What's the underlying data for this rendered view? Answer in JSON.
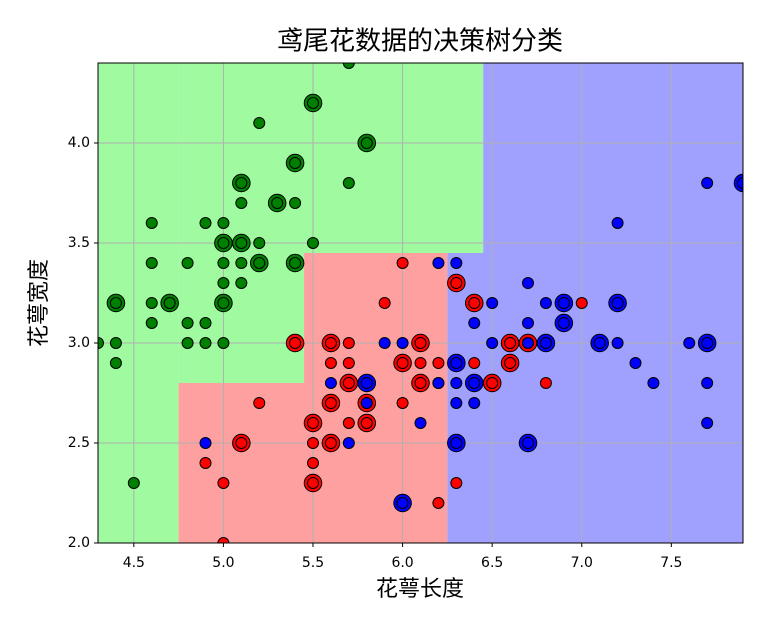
{
  "chart_data": {
    "type": "scatter",
    "title": "鸢尾花数据的决策树分类",
    "xlabel": "花萼长度",
    "ylabel": "花萼宽度",
    "xlim": [
      4.3,
      7.9
    ],
    "ylim": [
      2.0,
      4.4
    ],
    "xticks": [
      {
        "value": 4.5,
        "label": "4.5"
      },
      {
        "value": 5,
        "label": "5.0"
      },
      {
        "value": 5.5,
        "label": "5.5"
      },
      {
        "value": 6,
        "label": "6.0"
      },
      {
        "value": 6.5,
        "label": "6.5"
      },
      {
        "value": 7,
        "label": "7.0"
      },
      {
        "value": 7.5,
        "label": "7.5"
      }
    ],
    "yticks": [
      {
        "value": 2,
        "label": "2.0"
      },
      {
        "value": 2.5,
        "label": "2.5"
      },
      {
        "value": 3,
        "label": "3.0"
      },
      {
        "value": 3.5,
        "label": "3.5"
      },
      {
        "value": 4,
        "label": "4.0"
      }
    ],
    "grid": true,
    "regions": [
      {
        "x": [
          4.3,
          4.75
        ],
        "y": [
          2.0,
          4.4
        ],
        "color": "#a0faa0"
      },
      {
        "x": [
          4.75,
          5.45
        ],
        "y": [
          2.8,
          4.4
        ],
        "color": "#a0faa0"
      },
      {
        "x": [
          5.45,
          6.45
        ],
        "y": [
          3.45,
          4.4
        ],
        "color": "#a0faa0"
      },
      {
        "x": [
          4.75,
          6.25
        ],
        "y": [
          2.0,
          2.8
        ],
        "color": "#ffa0a0"
      },
      {
        "x": [
          5.45,
          6.25
        ],
        "y": [
          2.8,
          3.45
        ],
        "color": "#ffa0a0"
      },
      {
        "x": [
          6.25,
          7.9
        ],
        "y": [
          2.0,
          3.45
        ],
        "color": "#a0a0ff"
      },
      {
        "x": [
          6.45,
          7.9
        ],
        "y": [
          3.45,
          4.4
        ],
        "color": "#a0a0ff"
      }
    ],
    "series": [
      {
        "color": "#008000",
        "x": [
          5.7,
          5.5,
          5.2,
          5.8,
          5.4,
          5.1,
          5.7,
          5.3,
          5.1,
          5.4,
          4.6,
          4.9,
          5.0,
          5.0,
          5.1,
          5.2,
          5.5,
          4.6,
          4.8,
          5.0,
          5.1,
          5.2,
          5.4,
          5.0,
          5.1,
          4.4,
          4.6,
          4.7,
          5.0,
          4.6,
          4.8,
          4.9,
          4.3,
          4.4,
          4.8,
          4.9,
          5.0,
          4.4,
          4.5
        ],
        "y": [
          4.4,
          4.2,
          4.1,
          4.0,
          3.9,
          3.8,
          3.8,
          3.7,
          3.7,
          3.7,
          3.6,
          3.6,
          3.6,
          3.5,
          3.5,
          3.5,
          3.5,
          3.4,
          3.4,
          3.4,
          3.4,
          3.4,
          3.4,
          3.3,
          3.3,
          3.2,
          3.2,
          3.2,
          3.2,
          3.1,
          3.1,
          3.1,
          3.0,
          3.0,
          3.0,
          3.0,
          3.0,
          2.9,
          2.3
        ],
        "sizes": [
          1,
          2,
          1,
          2,
          2,
          2,
          1,
          2,
          1,
          1,
          1,
          1,
          1,
          2,
          2,
          1,
          1,
          1,
          1,
          1,
          1,
          2,
          2,
          1,
          1,
          2,
          1,
          2,
          2,
          1,
          1,
          1,
          1,
          1,
          1,
          1,
          1,
          1,
          1
        ]
      },
      {
        "color": "#ff0000",
        "x": [
          5.4,
          5.6,
          5.7,
          5.6,
          5.7,
          5.7,
          5.8,
          5.5,
          5.6,
          5.5,
          5.5,
          5.5,
          5.6,
          5.7,
          5.8,
          5.2,
          5.1,
          4.9,
          5.0,
          5.0,
          5.9,
          6.0,
          6.0,
          6.1,
          6.0,
          6.1,
          6.1,
          6.2,
          6.2,
          6.3,
          6.3,
          6.4,
          6.4,
          6.5,
          6.6,
          6.6,
          6.7,
          6.8,
          7.0,
          6.2
        ],
        "y": [
          3.0,
          3.0,
          3.0,
          2.9,
          2.9,
          2.8,
          2.7,
          2.6,
          2.7,
          2.5,
          2.4,
          2.3,
          2.5,
          2.6,
          2.6,
          2.7,
          2.5,
          2.4,
          2.3,
          2.0,
          3.2,
          3.4,
          2.9,
          3.0,
          2.7,
          2.8,
          2.9,
          2.9,
          2.2,
          2.3,
          3.3,
          3.2,
          2.9,
          2.8,
          3.0,
          2.9,
          3.0,
          2.8,
          3.2,
          2.8
        ],
        "sizes": [
          2,
          2,
          1,
          1,
          1,
          2,
          2,
          2,
          2,
          1,
          1,
          2,
          2,
          1,
          2,
          1,
          2,
          1,
          1,
          1,
          1,
          1,
          2,
          2,
          1,
          2,
          1,
          1,
          1,
          1,
          2,
          2,
          1,
          2,
          2,
          2,
          2,
          1,
          1,
          1
        ]
      },
      {
        "color": "#0000ff",
        "x": [
          7.9,
          7.7,
          7.2,
          6.3,
          6.2,
          6.5,
          6.9,
          7.2,
          6.8,
          6.7,
          6.4,
          6.7,
          6.9,
          6.5,
          6.4,
          6.7,
          6.8,
          7.1,
          7.2,
          7.6,
          7.7,
          7.3,
          7.4,
          7.7,
          7.7,
          6.3,
          6.3,
          6.4,
          6.3,
          6.3,
          6.7,
          6.0,
          6.1,
          5.8,
          5.8,
          5.6,
          5.7,
          4.9,
          6.0,
          5.9,
          6.2
        ],
        "y": [
          3.8,
          3.8,
          3.6,
          3.4,
          3.4,
          3.2,
          3.2,
          3.2,
          3.2,
          3.3,
          3.1,
          3.1,
          3.1,
          3.0,
          2.8,
          3.0,
          3.0,
          3.0,
          3.0,
          3.0,
          3.0,
          2.9,
          2.8,
          2.8,
          2.6,
          2.9,
          2.8,
          2.7,
          2.7,
          2.5,
          2.5,
          2.2,
          2.6,
          2.8,
          2.7,
          2.8,
          2.5,
          2.5,
          3.0,
          3.0,
          2.8
        ],
        "sizes": [
          2,
          1,
          1,
          1,
          1,
          1,
          2,
          2,
          1,
          1,
          1,
          1,
          2,
          1,
          2,
          1,
          2,
          2,
          1,
          1,
          2,
          1,
          1,
          1,
          1,
          2,
          1,
          1,
          1,
          2,
          2,
          2,
          1,
          2,
          1,
          1,
          1,
          1,
          1,
          1,
          1
        ]
      }
    ]
  }
}
